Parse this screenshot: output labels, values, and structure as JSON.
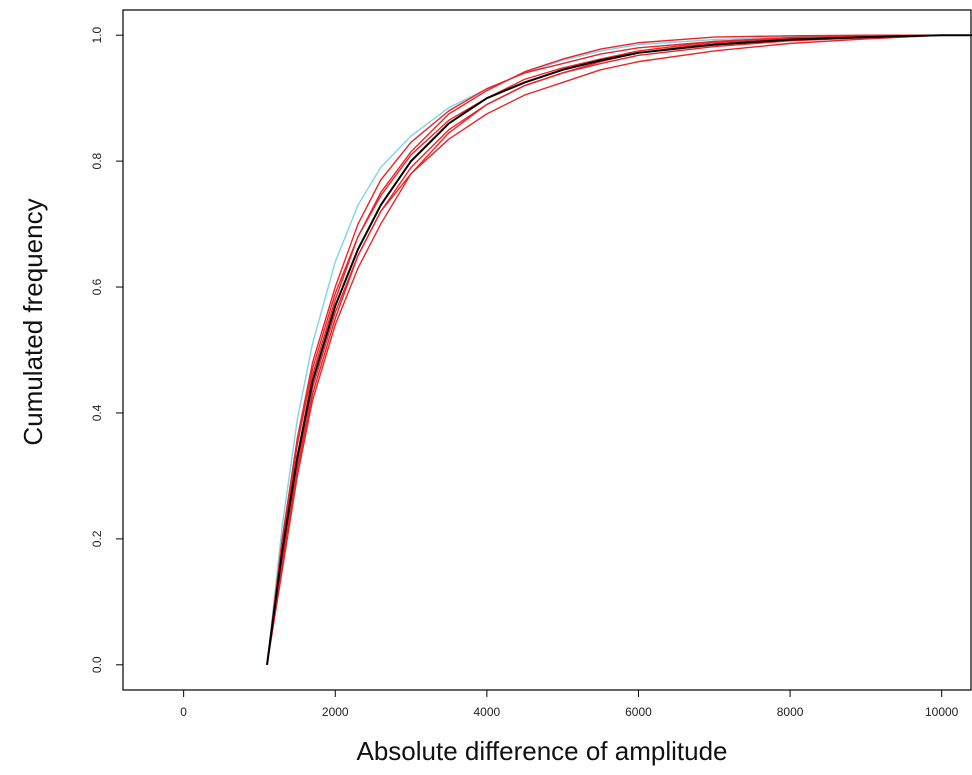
{
  "chart_data": {
    "type": "line",
    "title": "",
    "xlabel": "Absolute difference of amplitude",
    "ylabel": "Cumulated frequency",
    "xlim": [
      -800,
      10400
    ],
    "ylim": [
      -0.04,
      1.04
    ],
    "x_ticks": [
      0,
      2000,
      4000,
      6000,
      8000,
      10000
    ],
    "x_tick_labels": [
      "0",
      "2000",
      "4000",
      "6000",
      "8000",
      "10000"
    ],
    "y_ticks": [
      0.0,
      0.2,
      0.4,
      0.6,
      0.8,
      1.0
    ],
    "y_tick_labels": [
      "0.0",
      "0.2",
      "0.4",
      "0.6",
      "0.8",
      "1.0"
    ],
    "grid": false,
    "legend": "none",
    "colors": {
      "observed": "#000000",
      "simulated": "#e8262a",
      "highlight": "#7fd3ea"
    },
    "series": [
      {
        "role": "highlight",
        "color": "#7fd3ea",
        "x": [
          1100,
          1300,
          1500,
          1700,
          2000,
          2300,
          2600,
          3000,
          3500,
          4000,
          4500,
          5000,
          5500,
          6000,
          7000,
          8000,
          9000,
          10000
        ],
        "y": [
          0.0,
          0.22,
          0.39,
          0.51,
          0.64,
          0.73,
          0.79,
          0.84,
          0.885,
          0.915,
          0.94,
          0.96,
          0.975,
          0.985,
          0.993,
          0.997,
          0.999,
          1.0
        ]
      },
      {
        "role": "observed",
        "color": "#000000",
        "x": [
          1100,
          1300,
          1500,
          1700,
          2000,
          2300,
          2600,
          3000,
          3500,
          4000,
          4500,
          5000,
          5500,
          6000,
          7000,
          8000,
          9000,
          10000
        ],
        "y": [
          0.0,
          0.18,
          0.33,
          0.45,
          0.57,
          0.66,
          0.73,
          0.8,
          0.86,
          0.9,
          0.925,
          0.945,
          0.96,
          0.972,
          0.985,
          0.993,
          0.997,
          1.0
        ]
      },
      {
        "role": "simulated",
        "color": "#e8262a",
        "x": [
          1100,
          1300,
          1500,
          1700,
          2000,
          2300,
          2600,
          3000,
          3500,
          4000,
          4500,
          5000,
          5500,
          6000,
          7000,
          8000,
          9000,
          10000
        ],
        "y": [
          0.0,
          0.2,
          0.36,
          0.48,
          0.6,
          0.7,
          0.77,
          0.83,
          0.88,
          0.915,
          0.94,
          0.955,
          0.97,
          0.98,
          0.99,
          0.996,
          0.998,
          1.0
        ]
      },
      {
        "role": "simulated",
        "color": "#e8262a",
        "x": [
          1100,
          1300,
          1500,
          1700,
          2000,
          2300,
          2600,
          3000,
          3500,
          4000,
          4500,
          5000,
          5500,
          6000,
          7000,
          8000,
          9000,
          10000
        ],
        "y": [
          0.0,
          0.16,
          0.31,
          0.43,
          0.55,
          0.65,
          0.72,
          0.79,
          0.85,
          0.89,
          0.92,
          0.94,
          0.955,
          0.968,
          0.982,
          0.991,
          0.996,
          1.0
        ]
      },
      {
        "role": "simulated",
        "color": "#e8262a",
        "x": [
          1100,
          1300,
          1500,
          1700,
          2000,
          2300,
          2600,
          3000,
          3500,
          4000,
          4500,
          5000,
          5500,
          6000,
          7000,
          8000,
          9000,
          10000
        ],
        "y": [
          0.0,
          0.17,
          0.32,
          0.44,
          0.56,
          0.65,
          0.72,
          0.78,
          0.835,
          0.875,
          0.905,
          0.925,
          0.945,
          0.958,
          0.975,
          0.987,
          0.994,
          1.0
        ]
      },
      {
        "role": "simulated",
        "color": "#e8262a",
        "x": [
          1100,
          1300,
          1500,
          1700,
          2000,
          2300,
          2600,
          3000,
          3500,
          4000,
          4500,
          5000,
          5500,
          6000,
          7000,
          8000,
          9000,
          10000
        ],
        "y": [
          0.0,
          0.15,
          0.3,
          0.42,
          0.54,
          0.63,
          0.7,
          0.78,
          0.845,
          0.89,
          0.92,
          0.94,
          0.958,
          0.972,
          0.988,
          0.995,
          0.998,
          1.0
        ]
      },
      {
        "role": "simulated",
        "color": "#e8262a",
        "x": [
          1100,
          1300,
          1500,
          1700,
          2000,
          2300,
          2600,
          3000,
          3500,
          4000,
          4500,
          5000,
          5500,
          6000,
          7000,
          8000,
          9000,
          10000
        ],
        "y": [
          0.0,
          0.19,
          0.35,
          0.47,
          0.59,
          0.68,
          0.75,
          0.815,
          0.875,
          0.912,
          0.942,
          0.962,
          0.978,
          0.988,
          0.997,
          0.999,
          1.0,
          1.0
        ]
      },
      {
        "role": "simulated",
        "color": "#e8262a",
        "x": [
          1100,
          1300,
          1500,
          1700,
          2000,
          2300,
          2600,
          3000,
          3500,
          4000,
          4500,
          5000,
          5500,
          6000,
          7000,
          8000,
          9000,
          10000
        ],
        "y": [
          0.0,
          0.17,
          0.33,
          0.46,
          0.58,
          0.68,
          0.745,
          0.81,
          0.865,
          0.9,
          0.93,
          0.948,
          0.962,
          0.975,
          0.99,
          0.996,
          0.999,
          1.0
        ]
      }
    ]
  }
}
